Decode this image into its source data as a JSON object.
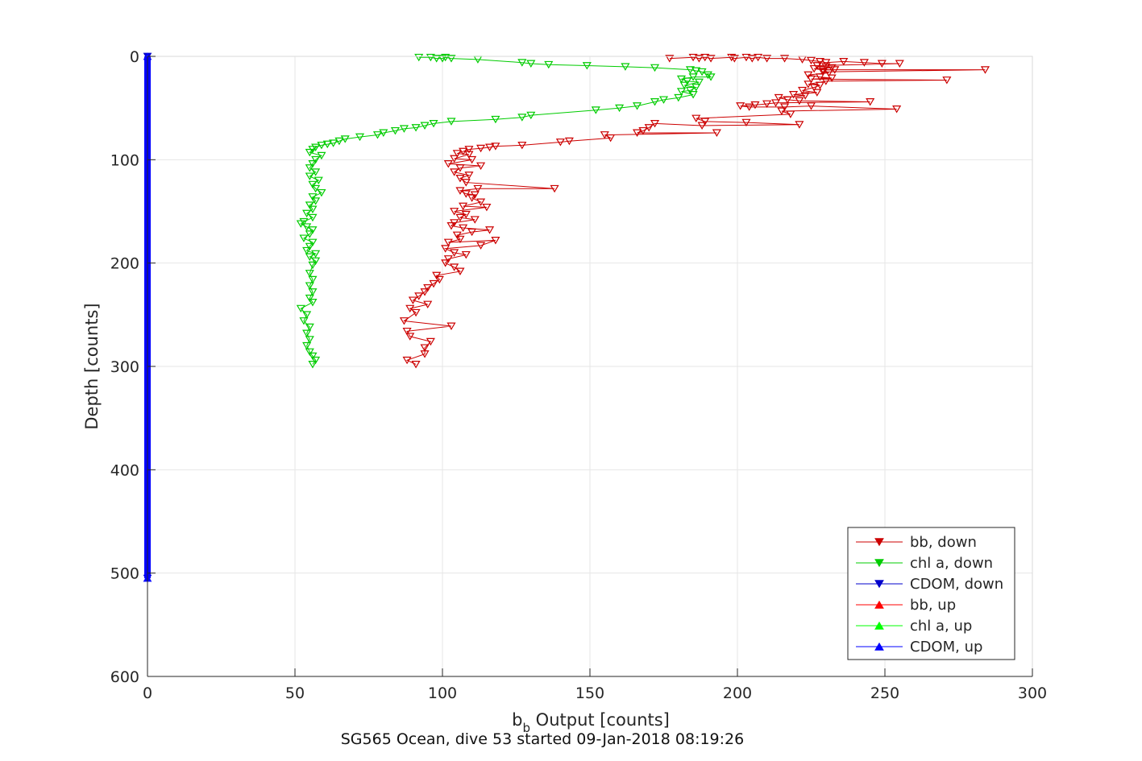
{
  "chart_data": {
    "type": "scatter",
    "xlabel_main": "b",
    "xlabel_sub": "b",
    "xlabel_rest": " Output [counts]",
    "ylabel": "Depth [counts]",
    "footer": "SG565 Ocean, dive 53 started 09-Jan-2018 08:19:26",
    "xlim": [
      0,
      300
    ],
    "ylim": [
      0,
      600
    ],
    "y_reversed": true,
    "grid": true,
    "legend_position": "bottom-right",
    "x_ticks": [
      "0",
      "50",
      "100",
      "150",
      "200",
      "250",
      "300"
    ],
    "y_ticks": [
      "0",
      "100",
      "200",
      "300",
      "400",
      "500",
      "600"
    ],
    "series": [
      {
        "name": "bb, down",
        "color": "#cc0000",
        "marker": "triangle-down",
        "points": [
          [
            177,
            2
          ],
          [
            185,
            1
          ],
          [
            187,
            2
          ],
          [
            189,
            1
          ],
          [
            191,
            2
          ],
          [
            198,
            1
          ],
          [
            199,
            2
          ],
          [
            203,
            1
          ],
          [
            205,
            2
          ],
          [
            207,
            1
          ],
          [
            210,
            2
          ],
          [
            216,
            2
          ],
          [
            222,
            3
          ],
          [
            225,
            4
          ],
          [
            228,
            5
          ],
          [
            230,
            6
          ],
          [
            236,
            5
          ],
          [
            243,
            6
          ],
          [
            249,
            7
          ],
          [
            255,
            7
          ],
          [
            227,
            9
          ],
          [
            230,
            10
          ],
          [
            232,
            11
          ],
          [
            226,
            12
          ],
          [
            229,
            13
          ],
          [
            233,
            13
          ],
          [
            284,
            13
          ],
          [
            229,
            15
          ],
          [
            231,
            16
          ],
          [
            224,
            18
          ],
          [
            228,
            20
          ],
          [
            232,
            21
          ],
          [
            225,
            22
          ],
          [
            271,
            23
          ],
          [
            230,
            24
          ],
          [
            224,
            27
          ],
          [
            228,
            28
          ],
          [
            226,
            30
          ],
          [
            222,
            33
          ],
          [
            227,
            35
          ],
          [
            219,
            37
          ],
          [
            223,
            38
          ],
          [
            214,
            40
          ],
          [
            217,
            42
          ],
          [
            221,
            43
          ],
          [
            245,
            44
          ],
          [
            213,
            45
          ],
          [
            210,
            46
          ],
          [
            206,
            47
          ],
          [
            201,
            48
          ],
          [
            204,
            49
          ],
          [
            216,
            49
          ],
          [
            225,
            48
          ],
          [
            254,
            51
          ],
          [
            215,
            53
          ],
          [
            218,
            56
          ],
          [
            186,
            60
          ],
          [
            189,
            63
          ],
          [
            203,
            64
          ],
          [
            221,
            66
          ],
          [
            188,
            67
          ],
          [
            172,
            65
          ],
          [
            170,
            69
          ],
          [
            168,
            72
          ],
          [
            166,
            74
          ],
          [
            193,
            74
          ],
          [
            155,
            76
          ],
          [
            157,
            79
          ],
          [
            143,
            82
          ],
          [
            140,
            83
          ],
          [
            127,
            86
          ],
          [
            118,
            87
          ],
          [
            116,
            88
          ],
          [
            113,
            89
          ],
          [
            109,
            90
          ],
          [
            107,
            92
          ],
          [
            105,
            94
          ],
          [
            109,
            95
          ],
          [
            104,
            99
          ],
          [
            110,
            100
          ],
          [
            102,
            104
          ],
          [
            113,
            106
          ],
          [
            106,
            108
          ],
          [
            104,
            112
          ],
          [
            109,
            115
          ],
          [
            106,
            118
          ],
          [
            108,
            122
          ],
          [
            138,
            128
          ],
          [
            112,
            128
          ],
          [
            106,
            130
          ],
          [
            108,
            133
          ],
          [
            111,
            134
          ],
          [
            110,
            137
          ],
          [
            113,
            141
          ],
          [
            107,
            145
          ],
          [
            115,
            146
          ],
          [
            104,
            150
          ],
          [
            108,
            153
          ],
          [
            106,
            156
          ],
          [
            111,
            158
          ],
          [
            104,
            161
          ],
          [
            103,
            164
          ],
          [
            107,
            166
          ],
          [
            116,
            168
          ],
          [
            110,
            170
          ],
          [
            105,
            173
          ],
          [
            106,
            177
          ],
          [
            102,
            180
          ],
          [
            118,
            178
          ],
          [
            113,
            183
          ],
          [
            101,
            186
          ],
          [
            104,
            190
          ],
          [
            108,
            192
          ],
          [
            102,
            196
          ],
          [
            101,
            200
          ],
          [
            104,
            204
          ],
          [
            106,
            208
          ],
          [
            98,
            212
          ],
          [
            99,
            216
          ],
          [
            97,
            220
          ],
          [
            95,
            224
          ],
          [
            94,
            228
          ],
          [
            92,
            232
          ],
          [
            90,
            236
          ],
          [
            95,
            240
          ],
          [
            89,
            244
          ],
          [
            91,
            248
          ],
          [
            87,
            256
          ],
          [
            103,
            261
          ],
          [
            88,
            266
          ],
          [
            89,
            271
          ],
          [
            96,
            276
          ],
          [
            94,
            282
          ],
          [
            94,
            288
          ],
          [
            88,
            294
          ],
          [
            91,
            298
          ]
        ]
      },
      {
        "name": "chl a, down",
        "color": "#00cc00",
        "marker": "triangle-down",
        "points": [
          [
            92,
            1
          ],
          [
            96,
            1
          ],
          [
            98,
            2
          ],
          [
            100,
            2
          ],
          [
            101,
            1
          ],
          [
            103,
            2
          ],
          [
            112,
            3
          ],
          [
            127,
            6
          ],
          [
            130,
            7
          ],
          [
            136,
            8
          ],
          [
            149,
            9
          ],
          [
            162,
            10
          ],
          [
            172,
            11
          ],
          [
            184,
            13
          ],
          [
            186,
            14
          ],
          [
            188,
            15
          ],
          [
            190,
            18
          ],
          [
            191,
            20
          ],
          [
            185,
            20
          ],
          [
            181,
            22
          ],
          [
            183,
            24
          ],
          [
            187,
            25
          ],
          [
            182,
            28
          ],
          [
            186,
            30
          ],
          [
            184,
            33
          ],
          [
            181,
            34
          ],
          [
            185,
            37
          ],
          [
            180,
            40
          ],
          [
            175,
            42
          ],
          [
            172,
            44
          ],
          [
            166,
            48
          ],
          [
            160,
            50
          ],
          [
            152,
            52
          ],
          [
            130,
            57
          ],
          [
            127,
            59
          ],
          [
            118,
            61
          ],
          [
            103,
            63
          ],
          [
            97,
            65
          ],
          [
            94,
            67
          ],
          [
            91,
            69
          ],
          [
            87,
            70
          ],
          [
            84,
            72
          ],
          [
            80,
            74
          ],
          [
            78,
            76
          ],
          [
            72,
            78
          ],
          [
            67,
            80
          ],
          [
            65,
            82
          ],
          [
            63,
            84
          ],
          [
            61,
            85
          ],
          [
            59,
            86
          ],
          [
            57,
            88
          ],
          [
            56,
            90
          ],
          [
            55,
            93
          ],
          [
            59,
            96
          ],
          [
            57,
            100
          ],
          [
            56,
            104
          ],
          [
            55,
            108
          ],
          [
            57,
            112
          ],
          [
            55,
            116
          ],
          [
            58,
            120
          ],
          [
            56,
            124
          ],
          [
            57,
            128
          ],
          [
            59,
            132
          ],
          [
            56,
            136
          ],
          [
            57,
            140
          ],
          [
            55,
            144
          ],
          [
            56,
            148
          ],
          [
            54,
            152
          ],
          [
            56,
            156
          ],
          [
            53,
            160
          ],
          [
            52,
            162
          ],
          [
            54,
            165
          ],
          [
            56,
            168
          ],
          [
            55,
            172
          ],
          [
            53,
            176
          ],
          [
            56,
            180
          ],
          [
            55,
            184
          ],
          [
            54,
            188
          ],
          [
            57,
            191
          ],
          [
            55,
            194
          ],
          [
            57,
            198
          ],
          [
            56,
            202
          ],
          [
            55,
            210
          ],
          [
            56,
            216
          ],
          [
            55,
            222
          ],
          [
            56,
            228
          ],
          [
            55,
            234
          ],
          [
            56,
            238
          ],
          [
            52,
            244
          ],
          [
            54,
            250
          ],
          [
            53,
            256
          ],
          [
            55,
            262
          ],
          [
            54,
            268
          ],
          [
            55,
            274
          ],
          [
            54,
            280
          ],
          [
            55,
            286
          ],
          [
            56,
            290
          ],
          [
            57,
            294
          ],
          [
            56,
            298
          ]
        ]
      },
      {
        "name": "CDOM, down",
        "color": "#0000cc",
        "marker": "triangle-down",
        "points": [
          [
            0,
            0
          ],
          [
            0,
            505
          ]
        ]
      },
      {
        "name": "bb, up",
        "color": "#ff0000",
        "marker": "triangle-up",
        "points": []
      },
      {
        "name": "chl a, up",
        "color": "#00ff00",
        "marker": "triangle-up",
        "points": []
      },
      {
        "name": "CDOM, up",
        "color": "#0000ff",
        "marker": "triangle-up",
        "points": [
          [
            0,
            0
          ],
          [
            0,
            505
          ]
        ]
      }
    ]
  }
}
